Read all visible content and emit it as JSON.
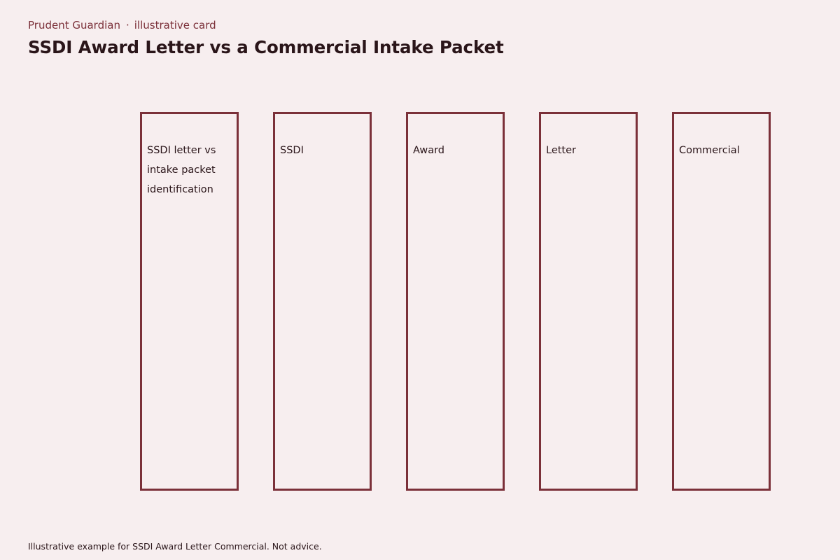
{
  "header": {
    "brand": "Prudent Guardian",
    "separator": "·",
    "tag": "illustrative card",
    "title": "SSDI Award Letter vs a Commercial Intake Packet"
  },
  "columns": [
    {
      "label": "SSDI letter vs intake packet identification"
    },
    {
      "label": "SSDI"
    },
    {
      "label": "Award"
    },
    {
      "label": "Letter"
    },
    {
      "label": "Commercial"
    }
  ],
  "footer": {
    "disclaimer": "Illustrative example for SSDI Award Letter Commercial. Not advice."
  },
  "colors": {
    "background": "#f7eeef",
    "accent": "#7b3039",
    "text": "#2a1519"
  }
}
